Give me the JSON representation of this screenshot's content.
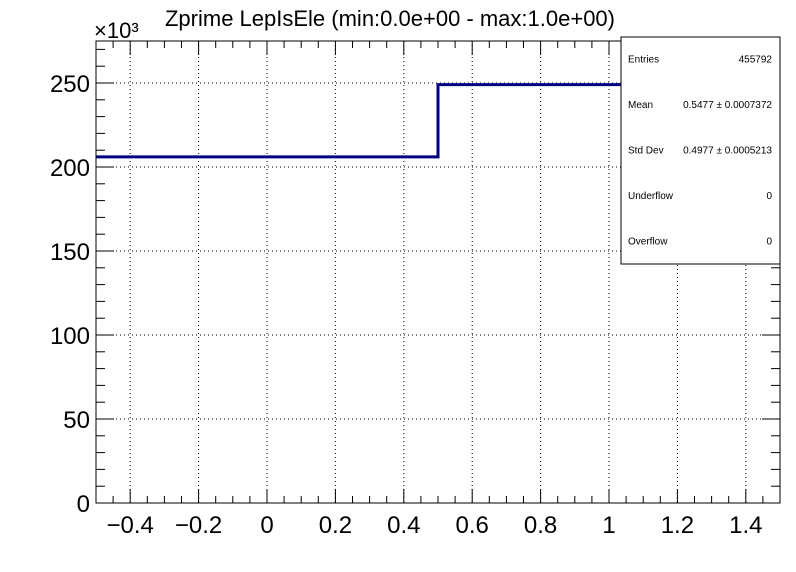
{
  "chart_data": {
    "type": "step",
    "title": "Zprime LepIsEle (min:0.0e+00 - max:1.0e+00)",
    "xlabel": "",
    "ylabel": "",
    "y_multiplier_label": "×10³",
    "xlim": [
      -0.5,
      1.5
    ],
    "ylim": [
      0,
      275
    ],
    "x_ticks": [
      -0.4,
      -0.2,
      0,
      0.2,
      0.4,
      0.6,
      0.8,
      1,
      1.2,
      1.4
    ],
    "x_tick_labels": [
      "−0.4",
      "−0.2",
      "0",
      "0.2",
      "0.4",
      "0.6",
      "0.8",
      "1",
      "1.2",
      "1.4"
    ],
    "y_ticks": [
      0,
      50,
      100,
      150,
      200,
      250
    ],
    "y_tick_labels": [
      "0",
      "50",
      "100",
      "150",
      "200",
      "250"
    ],
    "grid": true,
    "line_color": "#000080",
    "bins": [
      {
        "x_low": -0.5,
        "x_high": 0.5,
        "value": 206
      },
      {
        "x_low": 0.5,
        "x_high": 1.5,
        "value": 249
      }
    ]
  },
  "stats_box": {
    "rows": [
      {
        "label": "Entries",
        "value": "455792"
      },
      {
        "label": "Mean",
        "value": "0.5477 ± 0.0007372"
      },
      {
        "label": "Std Dev",
        "value": "0.4977 ± 0.0005213"
      },
      {
        "label": "Underflow",
        "value": "0"
      },
      {
        "label": "Overflow",
        "value": "0"
      }
    ]
  }
}
